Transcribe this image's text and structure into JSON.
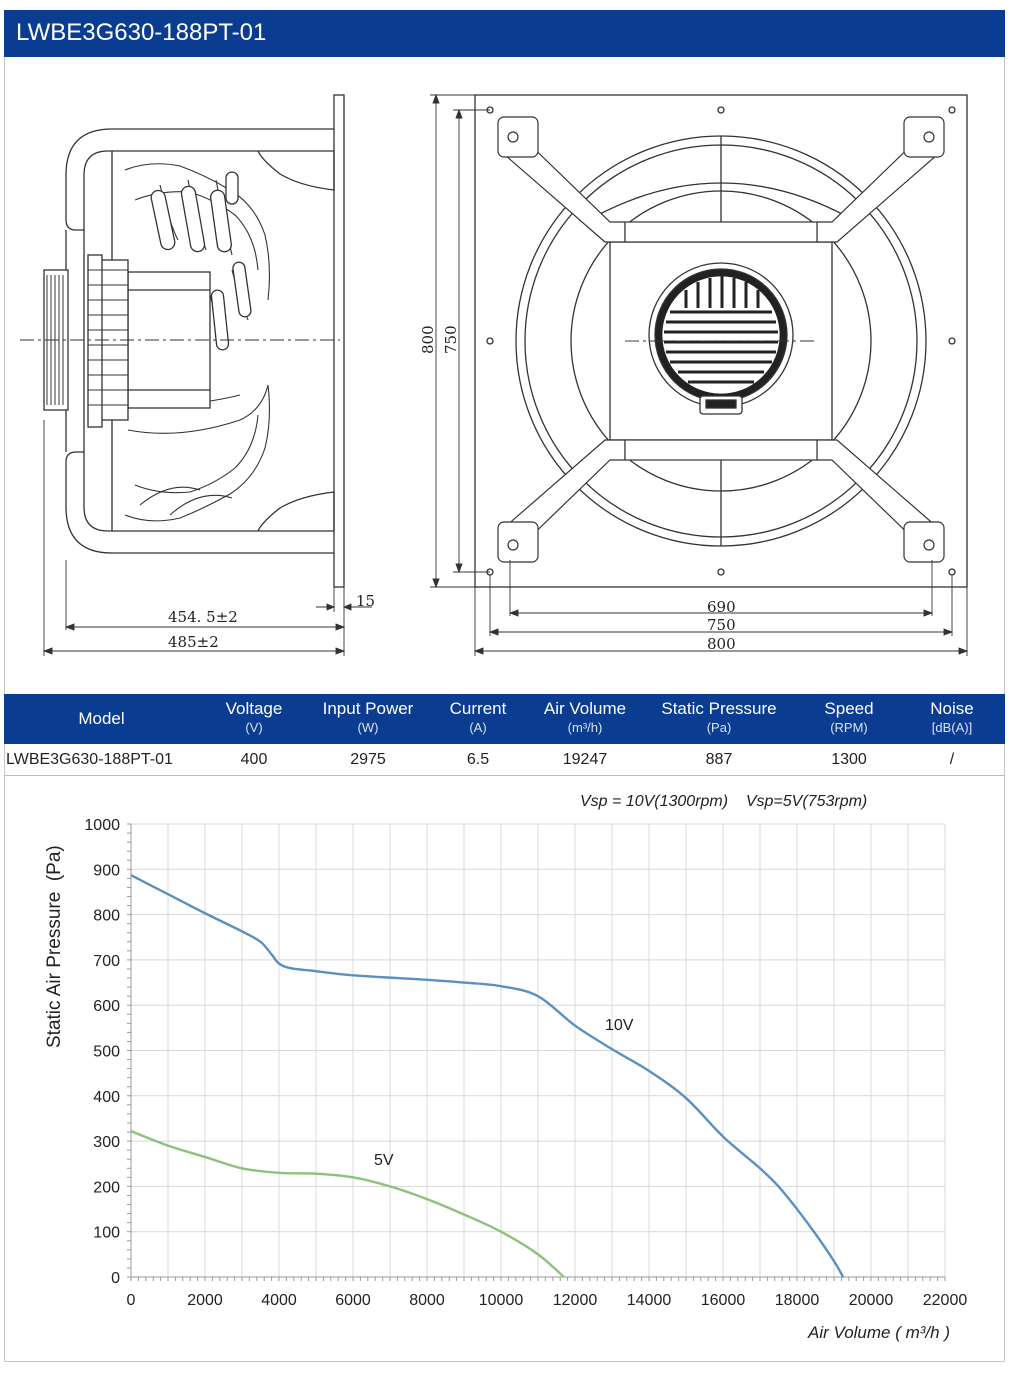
{
  "header": {
    "title": "LWBE3G630-188PT-01"
  },
  "dimensions": {
    "side_depth": "454. 5±2",
    "side_total": "485±2",
    "flange": "15",
    "height_outer": "800",
    "height_inner": "750",
    "hole_spacing": "690",
    "width_inner": "750",
    "width_outer": "800"
  },
  "spec_table": {
    "columns": [
      {
        "label": "Model",
        "unit": ""
      },
      {
        "label": "Voltage",
        "unit": "(V)"
      },
      {
        "label": "Input Power",
        "unit": "(W)"
      },
      {
        "label": "Current",
        "unit": "(A)"
      },
      {
        "label": "Air Volume",
        "unit": "(m³/h)"
      },
      {
        "label": "Static Pressure",
        "unit": "(Pa)"
      },
      {
        "label": "Speed",
        "unit": "(RPM)"
      },
      {
        "label": "Noise",
        "unit": "[dB(A)]"
      }
    ],
    "row": [
      "LWBE3G630-188PT-01",
      "400",
      "2975",
      "6.5",
      "19247",
      "887",
      "1300",
      "/"
    ]
  },
  "chart_data": {
    "type": "line",
    "title": "",
    "subtitle": "Vsp = 10V(1300rpm)    Vsp=5V(753rpm)",
    "xlabel": "Air Volume ( m³/h )",
    "ylabel": "Static Air Pressure  (Pa)",
    "xlim": [
      0,
      22000
    ],
    "ylim": [
      0,
      1000
    ],
    "x_ticks": [
      0,
      2000,
      4000,
      6000,
      8000,
      10000,
      12000,
      14000,
      16000,
      18000,
      20000,
      22000
    ],
    "y_ticks": [
      0,
      100,
      200,
      300,
      400,
      500,
      600,
      700,
      800,
      900,
      1000
    ],
    "grid": true,
    "series": [
      {
        "name": "10V",
        "color": "#5b8fc0",
        "x": [
          0,
          1000,
          2000,
          3000,
          3500,
          3800,
          4000,
          4300,
          5000,
          6000,
          8000,
          9000,
          10000,
          11000,
          12000,
          13000,
          14000,
          15000,
          16000,
          17000,
          17500,
          18000,
          18500,
          19000,
          19247
        ],
        "y": [
          887,
          845,
          803,
          763,
          740,
          712,
          692,
          682,
          675,
          666,
          656,
          650,
          642,
          620,
          555,
          503,
          455,
          395,
          310,
          240,
          200,
          150,
          95,
          35,
          0
        ]
      },
      {
        "name": "5V",
        "color": "#8cc27a",
        "x": [
          0,
          1000,
          2000,
          3000,
          4000,
          5000,
          6000,
          7000,
          8000,
          9000,
          10000,
          11000,
          11700
        ],
        "y": [
          322,
          290,
          265,
          240,
          230,
          228,
          220,
          200,
          172,
          138,
          100,
          50,
          0
        ]
      }
    ]
  }
}
